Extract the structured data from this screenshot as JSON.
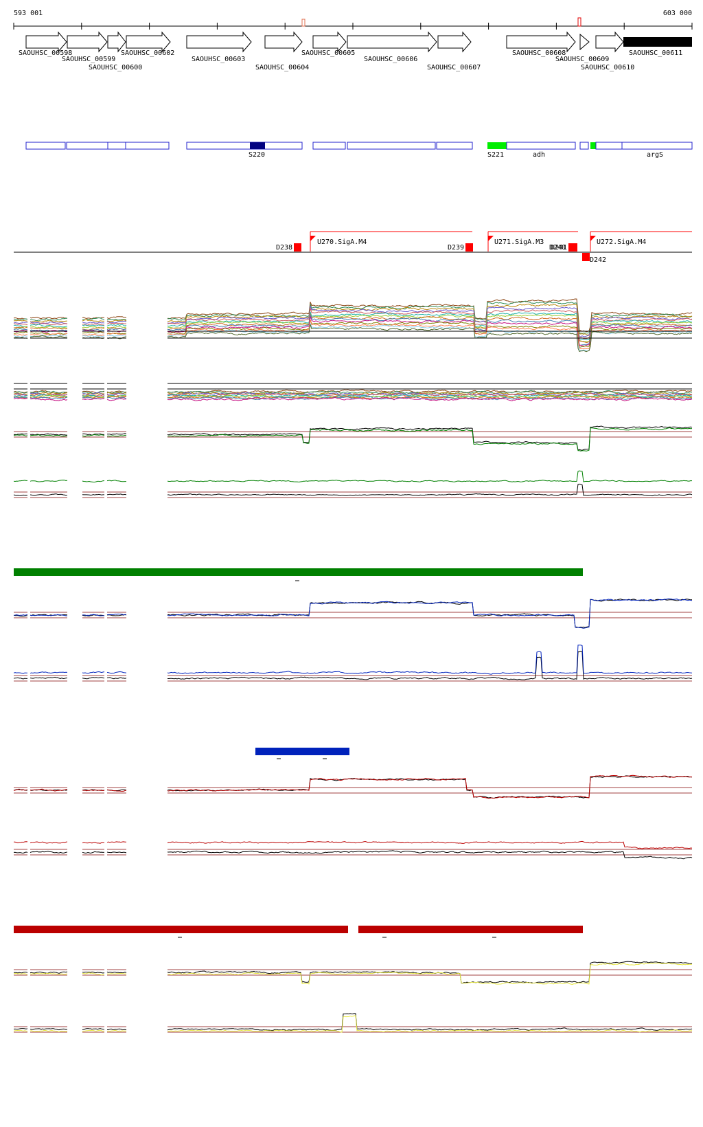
{
  "coords": {
    "start": "593 001",
    "end": "603 000"
  },
  "genes": [
    {
      "name": "SAOUHSC_00598"
    },
    {
      "name": "SAOUHSC_00599"
    },
    {
      "name": "SAOUHSC_00600"
    },
    {
      "name": "SAOUHSC_00602"
    },
    {
      "name": "SAOUHSC_00603"
    },
    {
      "name": "SAOUHSC_00604"
    },
    {
      "name": "SAOUHSC_00605"
    },
    {
      "name": "SAOUHSC_00606"
    },
    {
      "name": "SAOUHSC_00607"
    },
    {
      "name": "SAOUHSC_00608"
    },
    {
      "name": "SAOUHSC_00609"
    },
    {
      "name": "SAOUHSC_00610"
    },
    {
      "name": "SAOUHSC_00611"
    }
  ],
  "annotations": [
    {
      "label": "S220",
      "color": "#000080"
    },
    {
      "label": "S221",
      "color": "#00ee00"
    },
    {
      "label": "adh"
    },
    {
      "label": "argS"
    }
  ],
  "transcripts": {
    "down": [
      "D238",
      "D239",
      "D240",
      "D241",
      "D242"
    ],
    "up": [
      "U270.SigA.M4",
      "U271.SigA.M3",
      "U272.SigA.M4"
    ],
    "color": "#ff0000"
  },
  "condition_colors": {
    "green": "#008000",
    "blue": "#0022bb",
    "red": "#bb0000",
    "yellow": "#e8e840",
    "threshold": "#a04040"
  }
}
